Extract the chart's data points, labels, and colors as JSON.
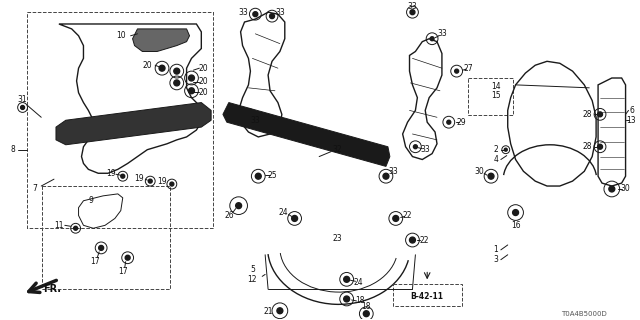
{
  "bg_color": "#ffffff",
  "lc": "#1a1a1a",
  "part_number_code": "T0A4B5000D",
  "reference_code": "B-42-11",
  "figsize": [
    6.4,
    3.2
  ],
  "dpi": 100
}
